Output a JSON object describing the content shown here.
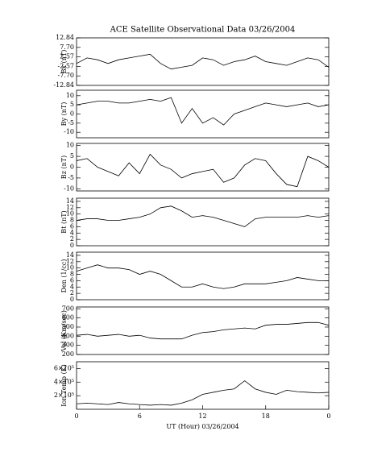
{
  "chart_data": [
    {
      "type": "line",
      "title": "ACE Satellite Observational Data  03/26/2004",
      "ylabel": "Bx (nT)",
      "color": "#000000",
      "x": [
        0,
        1,
        2,
        3,
        4,
        5,
        6,
        7,
        8,
        9,
        10,
        11,
        12,
        13,
        14,
        15,
        16,
        17,
        18,
        19,
        20,
        21,
        22,
        23,
        24
      ],
      "values": [
        -1,
        2,
        1,
        -1,
        1,
        2,
        3,
        4,
        -1,
        -4,
        -3,
        -2,
        2,
        1,
        -2,
        0,
        1,
        3,
        0,
        -1,
        -2,
        0,
        2,
        1,
        -3
      ],
      "xlim": [
        0,
        24
      ],
      "ylim": [
        -12.84,
        12.84
      ],
      "yticks": [
        12.84,
        {
          "value": 7.7,
          "label": "7.70"
        },
        2.57,
        -2.57,
        {
          "value": -7.7,
          "label": "-7.70"
        },
        -12.84
      ]
    },
    {
      "type": "line",
      "ylabel": "By (nT)",
      "color": "#000000",
      "x": [
        0,
        1,
        2,
        3,
        4,
        5,
        6,
        7,
        8,
        9,
        10,
        11,
        12,
        13,
        14,
        15,
        16,
        17,
        18,
        19,
        20,
        21,
        22,
        23,
        24
      ],
      "values": [
        5,
        6,
        7,
        7,
        6,
        6,
        7,
        8,
        7,
        9,
        -5,
        3,
        -5,
        -2,
        -6,
        0,
        2,
        4,
        6,
        5,
        4,
        5,
        6,
        4,
        5
      ],
      "xlim": [
        0,
        24
      ],
      "ylim": [
        -13,
        13
      ],
      "yticks": [
        10,
        5,
        0,
        -5,
        -10
      ]
    },
    {
      "type": "line",
      "ylabel": "Bz (nT)",
      "color": "#000000",
      "x": [
        0,
        1,
        2,
        3,
        4,
        5,
        6,
        7,
        8,
        9,
        10,
        11,
        12,
        13,
        14,
        15,
        16,
        17,
        18,
        19,
        20,
        21,
        22,
        23,
        24
      ],
      "values": [
        3,
        4,
        0,
        -2,
        -4,
        2,
        -3,
        6,
        1,
        -1,
        -5,
        -3,
        -2,
        -1,
        -7,
        -5,
        1,
        4,
        3,
        -3,
        -8,
        -9,
        5,
        3,
        0
      ],
      "xlim": [
        0,
        24
      ],
      "ylim": [
        -11,
        11
      ],
      "yticks": [
        10,
        5,
        0,
        -5,
        -10
      ]
    },
    {
      "type": "line",
      "ylabel": "Bt (nT)",
      "color": "#000000",
      "x": [
        0,
        1,
        2,
        3,
        4,
        5,
        6,
        7,
        8,
        9,
        10,
        11,
        12,
        13,
        14,
        15,
        16,
        17,
        18,
        19,
        20,
        21,
        22,
        23,
        24
      ],
      "values": [
        8,
        8.5,
        8.5,
        8,
        8,
        8.5,
        9,
        10,
        12,
        12.5,
        11,
        9,
        9.5,
        9,
        8,
        7,
        6,
        8.5,
        9,
        9,
        9,
        9,
        9.5,
        9,
        9.5
      ],
      "xlim": [
        0,
        24
      ],
      "ylim": [
        0,
        15
      ],
      "yticks": [
        0,
        2,
        4,
        6,
        8,
        10,
        12,
        14
      ]
    },
    {
      "type": "line",
      "ylabel": "Den (1/cc)",
      "color": "#000000",
      "x": [
        0,
        1,
        2,
        3,
        4,
        5,
        6,
        7,
        8,
        9,
        10,
        11,
        12,
        13,
        14,
        15,
        16,
        17,
        18,
        19,
        20,
        21,
        22,
        23,
        24
      ],
      "values": [
        9,
        10,
        11,
        10,
        10,
        9.5,
        8,
        9,
        8,
        6,
        4,
        4,
        5,
        4,
        3.5,
        4,
        5,
        5,
        5,
        5.5,
        6,
        7,
        6.5,
        6,
        6
      ],
      "xlim": [
        0,
        24
      ],
      "ylim": [
        0,
        15
      ],
      "yticks": [
        0,
        2,
        4,
        6,
        8,
        10,
        12,
        14
      ]
    },
    {
      "type": "line",
      "ylabel": "Vel (Km/sec)",
      "color": "#000000",
      "x": [
        0,
        1,
        2,
        3,
        4,
        5,
        6,
        7,
        8,
        9,
        10,
        11,
        12,
        13,
        14,
        15,
        16,
        17,
        18,
        19,
        20,
        21,
        22,
        23,
        24
      ],
      "values": [
        410,
        420,
        400,
        410,
        420,
        400,
        410,
        380,
        370,
        370,
        370,
        410,
        440,
        450,
        470,
        480,
        490,
        480,
        520,
        530,
        530,
        540,
        550,
        550,
        520
      ],
      "xlim": [
        0,
        24
      ],
      "ylim": [
        200,
        720
      ],
      "yticks": [
        200,
        300,
        400,
        500,
        600,
        700
      ]
    },
    {
      "type": "line",
      "ylabel": "Ion Temp (K)",
      "xlabel": "UT (Hour)  03/26/2004",
      "color": "#000000",
      "x": [
        0,
        1,
        2,
        3,
        4,
        5,
        6,
        7,
        8,
        9,
        10,
        11,
        12,
        13,
        14,
        15,
        16,
        17,
        18,
        19,
        20,
        21,
        22,
        23,
        24
      ],
      "values": [
        80000,
        90000,
        80000,
        70000,
        100000,
        80000,
        70000,
        60000,
        70000,
        60000,
        90000,
        140000,
        220000,
        250000,
        280000,
        300000,
        420000,
        300000,
        250000,
        220000,
        280000,
        260000,
        250000,
        240000,
        250000
      ],
      "xlim": [
        0,
        24
      ],
      "ylim": [
        0,
        700000
      ],
      "yticks": [
        {
          "value": 200000,
          "label": "2×10⁵"
        },
        {
          "value": 400000,
          "label": "4×10⁵"
        },
        {
          "value": 600000,
          "label": "6×10⁵"
        }
      ],
      "xticks": [
        0,
        6,
        12,
        18,
        {
          "value": 24,
          "label": "0"
        }
      ]
    }
  ]
}
